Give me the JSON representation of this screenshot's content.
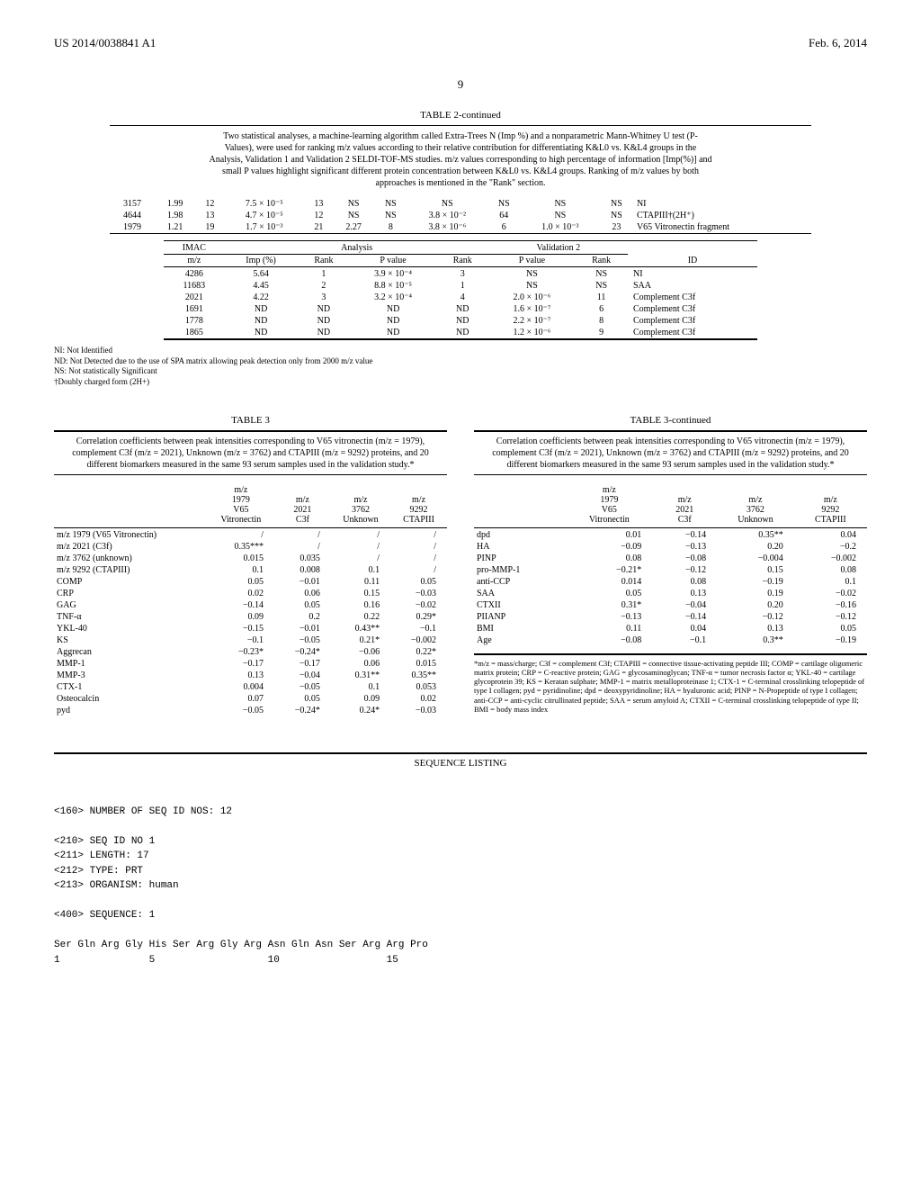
{
  "header": {
    "pub_no": "US 2014/0038841 A1",
    "date": "Feb. 6, 2014",
    "page": "9"
  },
  "table2": {
    "title": "TABLE 2-continued",
    "caption": "Two statistical analyses, a machine-learning algorithm called Extra-Trees N (Imp %) and a nonparametric Mann-Whitney U test (P-Values), were used for ranking m/z values according to their relative contribution for differentiating K&L0 vs. K&L4 groups in the Analysis, Validation 1 and Validation 2 SELDI-TOF-MS studies. m/z values corresponding to high percentage of information [Imp(%)] and small P values highlight significant different protein concentration between K&L0 vs. K&L4 groups. Ranking of m/z values by both approaches is mentioned in the \"Rank\" section.",
    "partA": {
      "rows": [
        {
          "mz": "3157",
          "imp": "1.99",
          "rankA": "12",
          "pA": "7.5 × 10⁻⁵",
          "rankPA": "13",
          "impV1": "NS",
          "rankV1": "NS",
          "pV1": "NS",
          "rankPV1": "NS",
          "pV2": "NS",
          "rankV2": "NS",
          "id": "NI"
        },
        {
          "mz": "4644",
          "imp": "1.98",
          "rankA": "13",
          "pA": "4.7 × 10⁻⁵",
          "rankPA": "12",
          "impV1": "NS",
          "rankV1": "NS",
          "pV1": "3.8 × 10⁻²",
          "rankPV1": "64",
          "pV2": "NS",
          "rankV2": "NS",
          "id": "CTAPIII†(2H⁺)"
        },
        {
          "mz": "1979",
          "imp": "1.21",
          "rankA": "19",
          "pA": "1.7 × 10⁻³",
          "rankPA": "21",
          "impV1": "2.27",
          "rankV1": "8",
          "pV1": "3.8 × 10⁻⁶",
          "rankPV1": "6",
          "pV2": "1.0 × 10⁻³",
          "rankV2": "23",
          "id": "V65 Vitronectin fragment"
        }
      ]
    },
    "partB": {
      "head": {
        "group1": "IMAC",
        "group2": "Analysis",
        "group3": "Validation 2"
      },
      "cols": [
        "m/z",
        "Imp (%)",
        "Rank",
        "P value",
        "Rank",
        "P value",
        "Rank",
        "ID"
      ],
      "rows": [
        {
          "mz": "4286",
          "imp": "5.64",
          "rankA": "1",
          "pA": "3.9 × 10⁻⁴",
          "rankPA": "3",
          "pV2": "NS",
          "rankV2": "NS",
          "id": "NI"
        },
        {
          "mz": "11683",
          "imp": "4.45",
          "rankA": "2",
          "pA": "8.8 × 10⁻⁵",
          "rankPA": "1",
          "pV2": "NS",
          "rankV2": "NS",
          "id": "SAA"
        },
        {
          "mz": "2021",
          "imp": "4.22",
          "rankA": "3",
          "pA": "3.2 × 10⁻⁴",
          "rankPA": "4",
          "pV2": "2.0 × 10⁻⁶",
          "rankV2": "11",
          "id": "Complement C3f"
        },
        {
          "mz": "1691",
          "imp": "ND",
          "rankA": "ND",
          "pA": "ND",
          "rankPA": "ND",
          "pV2": "1.6 × 10⁻⁷",
          "rankV2": "6",
          "id": "Complement C3f"
        },
        {
          "mz": "1778",
          "imp": "ND",
          "rankA": "ND",
          "pA": "ND",
          "rankPA": "ND",
          "pV2": "2.2 × 10⁻⁷",
          "rankV2": "8",
          "id": "Complement C3f"
        },
        {
          "mz": "1865",
          "imp": "ND",
          "rankA": "ND",
          "pA": "ND",
          "rankPA": "ND",
          "pV2": "1.2 × 10⁻⁶",
          "rankV2": "9",
          "id": "Complement C3f"
        }
      ]
    },
    "footnotes": [
      "NI: Not Identified",
      "ND: Not Detected due to the use of SPA matrix allowing peak detection only from 2000 m/z value",
      "NS: Not statistically Significant",
      "†Doubly charged form (2H+)"
    ]
  },
  "table3": {
    "title": "TABLE 3",
    "title_cont": "TABLE 3-continued",
    "caption": "Correlation coefficients between peak intensities corresponding to V65 vitronectin (m/z = 1979), complement C3f (m/z = 2021), Unknown (m/z = 3762) and CTAPIII (m/z = 9292) proteins, and 20 different biomarkers measured in the same 93 serum samples used in the validation study.*",
    "cols": [
      "",
      "m/z 1979 V65 Vitronectin",
      "m/z 2021 C3f",
      "m/z 3762 Unknown",
      "m/z 9292 CTAPIII"
    ],
    "left_rows": [
      {
        "lbl": "m/z 1979 (V65 Vitronectin)",
        "c1": "/",
        "c2": "/",
        "c3": "/",
        "c4": "/"
      },
      {
        "lbl": "m/z 2021 (C3f)",
        "c1": "0.35***",
        "c2": "/",
        "c3": "/",
        "c4": "/"
      },
      {
        "lbl": "m/z 3762 (unknown)",
        "c1": "0.015",
        "c2": "0.035",
        "c3": "/",
        "c4": "/"
      },
      {
        "lbl": "m/z 9292 (CTAPIII)",
        "c1": "0.1",
        "c2": "0.008",
        "c3": "0.1",
        "c4": "/"
      },
      {
        "lbl": "COMP",
        "c1": "0.05",
        "c2": "−0.01",
        "c3": "0.11",
        "c4": "0.05"
      },
      {
        "lbl": "CRP",
        "c1": "0.02",
        "c2": "0.06",
        "c3": "0.15",
        "c4": "−0.03"
      },
      {
        "lbl": "GAG",
        "c1": "−0.14",
        "c2": "0.05",
        "c3": "0.16",
        "c4": "−0.02"
      },
      {
        "lbl": "TNF-α",
        "c1": "0.09",
        "c2": "0.2",
        "c3": "0.22",
        "c4": "0.29*"
      },
      {
        "lbl": "YKL-40",
        "c1": "−0.15",
        "c2": "−0.01",
        "c3": "0.43**",
        "c4": "−0.1"
      },
      {
        "lbl": "KS",
        "c1": "−0.1",
        "c2": "−0.05",
        "c3": "0.21*",
        "c4": "−0.002"
      },
      {
        "lbl": "Aggrecan",
        "c1": "−0.23*",
        "c2": "−0.24*",
        "c3": "−0.06",
        "c4": "0.22*"
      },
      {
        "lbl": "MMP-1",
        "c1": "−0.17",
        "c2": "−0.17",
        "c3": "0.06",
        "c4": "0.015"
      },
      {
        "lbl": "MMP-3",
        "c1": "0.13",
        "c2": "−0.04",
        "c3": "0.31**",
        "c4": "0.35**"
      },
      {
        "lbl": "CTX-1",
        "c1": "0.004",
        "c2": "−0.05",
        "c3": "0.1",
        "c4": "0.053"
      },
      {
        "lbl": "Osteocalcin",
        "c1": "0.07",
        "c2": "0.05",
        "c3": "0.09",
        "c4": "0.02"
      },
      {
        "lbl": "pyd",
        "c1": "−0.05",
        "c2": "−0.24*",
        "c3": "0.24*",
        "c4": "−0.03"
      }
    ],
    "right_rows": [
      {
        "lbl": "dpd",
        "c1": "0.01",
        "c2": "−0.14",
        "c3": "0.35**",
        "c4": "0.04"
      },
      {
        "lbl": "HA",
        "c1": "−0.09",
        "c2": "−0.13",
        "c3": "0.20",
        "c4": "−0.2"
      },
      {
        "lbl": "PINP",
        "c1": "0.08",
        "c2": "−0.08",
        "c3": "−0.004",
        "c4": "−0.002"
      },
      {
        "lbl": "pro-MMP-1",
        "c1": "−0.21*",
        "c2": "−0.12",
        "c3": "0.15",
        "c4": "0.08"
      },
      {
        "lbl": "anti-CCP",
        "c1": "0.014",
        "c2": "0.08",
        "c3": "−0.19",
        "c4": "0.1"
      },
      {
        "lbl": "SAA",
        "c1": "0.05",
        "c2": "0.13",
        "c3": "0.19",
        "c4": "−0.02"
      },
      {
        "lbl": "CTXII",
        "c1": "0.31*",
        "c2": "−0.04",
        "c3": "0.20",
        "c4": "−0.16"
      },
      {
        "lbl": "PIIANP",
        "c1": "−0.13",
        "c2": "−0.14",
        "c3": "−0.12",
        "c4": "−0.12"
      },
      {
        "lbl": "BMI",
        "c1": "0.11",
        "c2": "0.04",
        "c3": "0.13",
        "c4": "0.05"
      },
      {
        "lbl": "Age",
        "c1": "−0.08",
        "c2": "−0.1",
        "c3": "0.3**",
        "c4": "−0.19"
      }
    ],
    "footnote": "*m/z = mass/charge; C3f = complement C3f; CTAPIII = connective tissue-activating peptide III; COMP = cartilage oligomeric matrix protein; CRP = C-reactive protein; GAG = glycosaminoglycan; TNF-α = tumor necrosis factor α; YKL-40 = cartilage glycoprotein 39; KS = Keratan sulphate; MMP-1 = matrix metalloproteinase 1; CTX-1 = C-terminal crosslinking telopeptide of type I collagen; pyd = pyridinoline; dpd = deoxypyridinoline; HA = hyaluronic acid; PINP = N-Propeptide of type I collagen; anti-CCP = anti-cyclic citrullinated peptide; SAA = serum amyloid A; CTXII = C-terminal crosslinking telopeptide of type II; BMI = body mass index"
  },
  "seq": {
    "title": "SEQUENCE LISTING",
    "lines": [
      "<160> NUMBER OF SEQ ID NOS: 12",
      "",
      "<210> SEQ ID NO 1",
      "<211> LENGTH: 17",
      "<212> TYPE: PRT",
      "<213> ORGANISM: human",
      "",
      "<400> SEQUENCE: 1",
      "",
      "Ser Gln Arg Gly His Ser Arg Gly Arg Asn Gln Asn Ser Arg Arg Pro",
      "1               5                   10                  15"
    ]
  }
}
